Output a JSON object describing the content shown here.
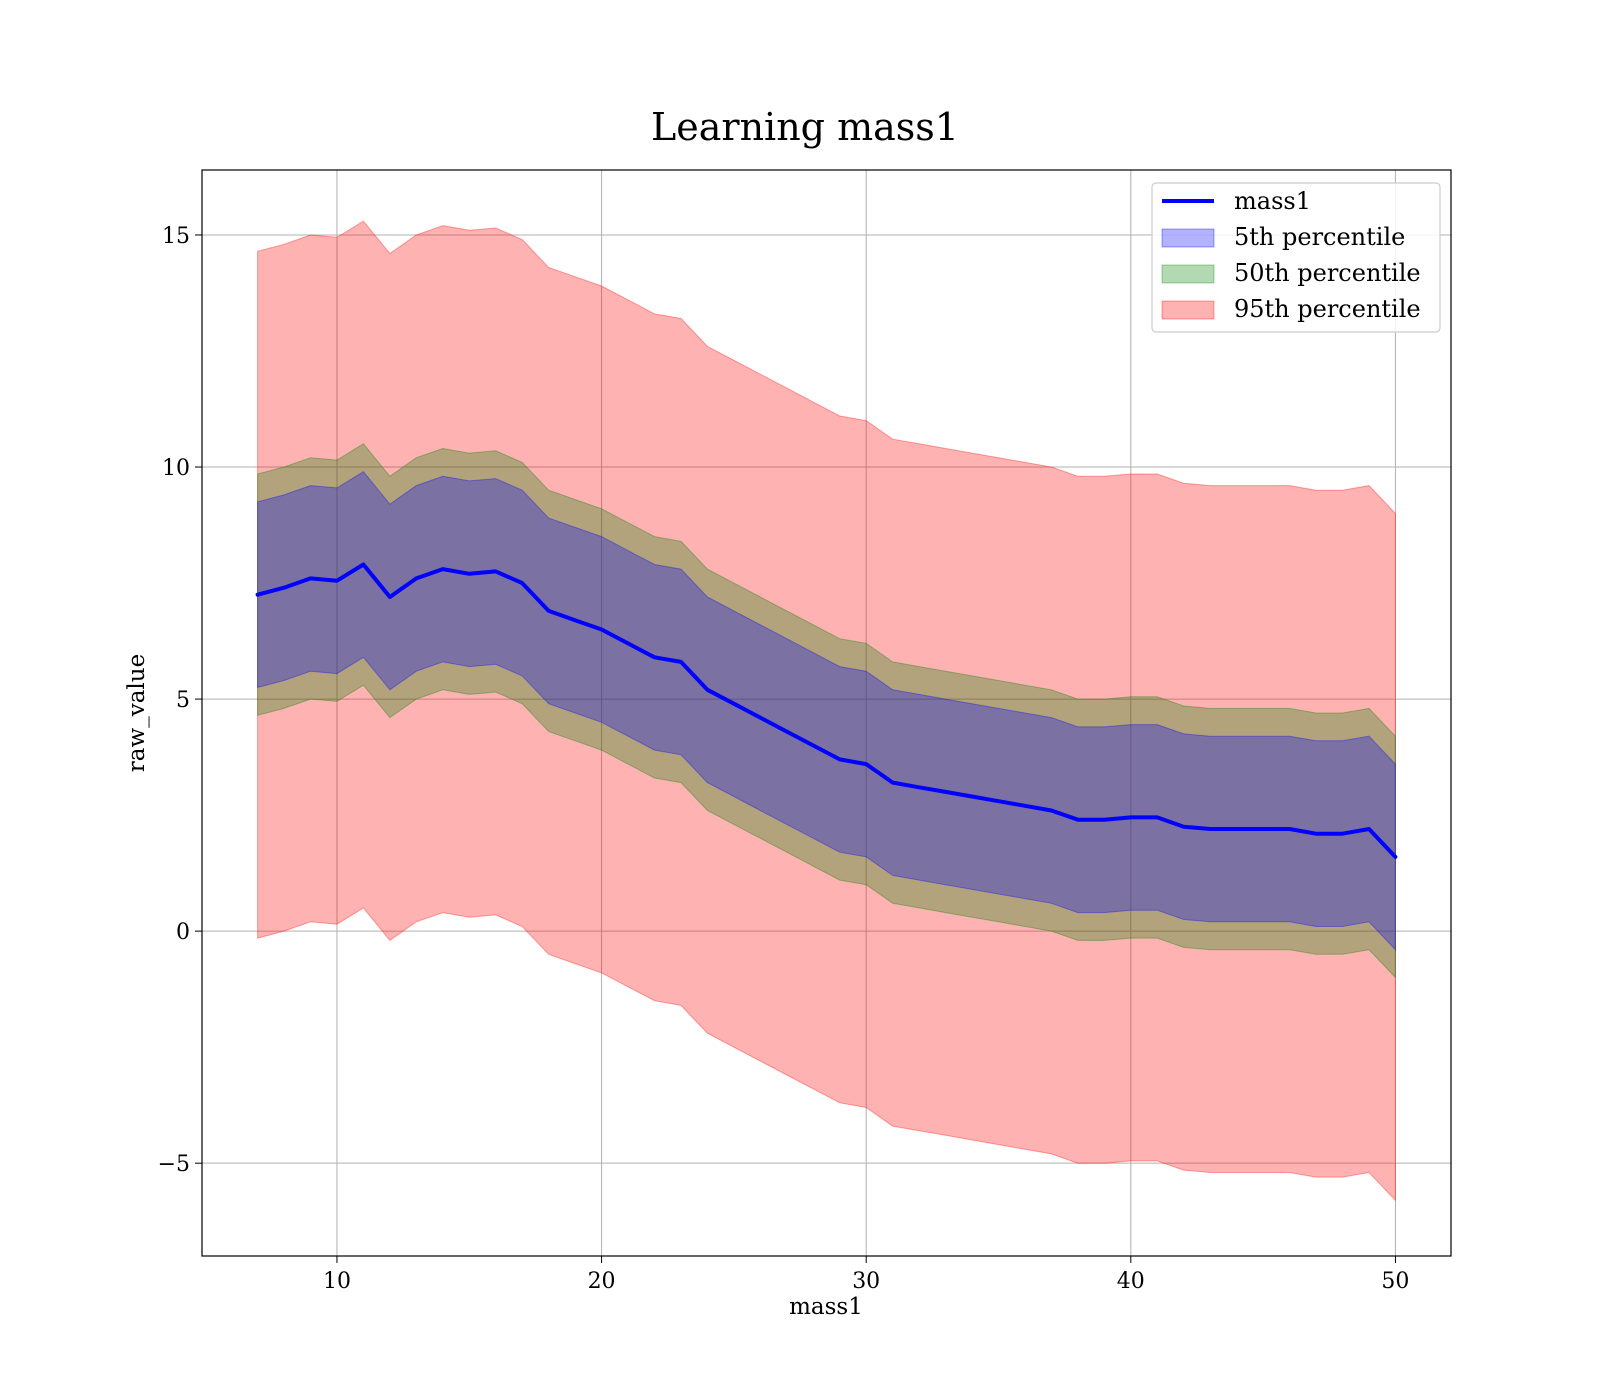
{
  "chart_data": {
    "type": "area",
    "title": "Learning mass1",
    "xlabel": "mass1",
    "ylabel": "raw_value",
    "xlim": [
      4.9,
      52.1
    ],
    "ylim": [
      -7.0,
      16.4
    ],
    "xticks": [
      10,
      20,
      30,
      40,
      50
    ],
    "yticks": [
      -5,
      0,
      5,
      10,
      15
    ],
    "xtick_labels": [
      "10",
      "20",
      "30",
      "40",
      "50"
    ],
    "ytick_labels": [
      "−5",
      "0",
      "5",
      "10",
      "15"
    ],
    "grid": true,
    "legend_position": "top-right",
    "x": [
      7,
      8,
      9,
      10,
      11,
      12,
      13,
      14,
      15,
      16,
      17,
      18,
      19,
      20,
      21,
      22,
      23,
      24,
      25,
      26,
      27,
      28,
      29,
      30,
      31,
      32,
      33,
      34,
      35,
      36,
      37,
      38,
      39,
      40,
      41,
      42,
      43,
      44,
      45,
      46,
      47,
      48,
      49,
      50
    ],
    "series": [
      {
        "name": "mass1",
        "kind": "line",
        "color": "#0000ff",
        "values": [
          7.25,
          7.4,
          7.6,
          7.55,
          7.9,
          7.2,
          7.6,
          7.8,
          7.7,
          7.75,
          7.5,
          6.9,
          6.7,
          6.5,
          6.2,
          5.9,
          5.8,
          5.2,
          4.9,
          4.6,
          4.3,
          4.0,
          3.7,
          3.6,
          3.2,
          3.1,
          3.0,
          2.9,
          2.8,
          2.7,
          2.6,
          2.4,
          2.4,
          2.45,
          2.45,
          2.25,
          2.2,
          2.2,
          2.2,
          2.2,
          2.1,
          2.1,
          2.2,
          1.6
        ]
      },
      {
        "name": "5th percentile",
        "kind": "band",
        "color": "#0000ff",
        "lower": [
          5.25,
          5.4,
          5.6,
          5.55,
          5.9,
          5.2,
          5.6,
          5.8,
          5.7,
          5.75,
          5.5,
          4.9,
          4.7,
          4.5,
          4.2,
          3.9,
          3.8,
          3.2,
          2.9,
          2.6,
          2.3,
          2.0,
          1.7,
          1.6,
          1.2,
          1.1,
          1.0,
          0.9,
          0.8,
          0.7,
          0.6,
          0.4,
          0.4,
          0.45,
          0.45,
          0.25,
          0.2,
          0.2,
          0.2,
          0.2,
          0.1,
          0.1,
          0.2,
          -0.4
        ],
        "upper": [
          9.25,
          9.4,
          9.6,
          9.55,
          9.9,
          9.2,
          9.6,
          9.8,
          9.7,
          9.75,
          9.5,
          8.9,
          8.7,
          8.5,
          8.2,
          7.9,
          7.8,
          7.2,
          6.9,
          6.6,
          6.3,
          6.0,
          5.7,
          5.6,
          5.2,
          5.1,
          5.0,
          4.9,
          4.8,
          4.7,
          4.6,
          4.4,
          4.4,
          4.45,
          4.45,
          4.25,
          4.2,
          4.2,
          4.2,
          4.2,
          4.1,
          4.1,
          4.2,
          3.6
        ]
      },
      {
        "name": "50th percentile",
        "kind": "band",
        "color": "#008000",
        "lower": [
          4.65,
          4.8,
          5.0,
          4.95,
          5.3,
          4.6,
          5.0,
          5.2,
          5.1,
          5.15,
          4.9,
          4.3,
          4.1,
          3.9,
          3.6,
          3.3,
          3.2,
          2.6,
          2.3,
          2.0,
          1.7,
          1.4,
          1.1,
          1.0,
          0.6,
          0.5,
          0.4,
          0.3,
          0.2,
          0.1,
          0.0,
          -0.2,
          -0.2,
          -0.15,
          -0.15,
          -0.35,
          -0.4,
          -0.4,
          -0.4,
          -0.4,
          -0.5,
          -0.5,
          -0.4,
          -1.0
        ],
        "upper": [
          9.85,
          10.0,
          10.2,
          10.15,
          10.5,
          9.8,
          10.2,
          10.4,
          10.3,
          10.35,
          10.1,
          9.5,
          9.3,
          9.1,
          8.8,
          8.5,
          8.4,
          7.8,
          7.5,
          7.2,
          6.9,
          6.6,
          6.3,
          6.2,
          5.8,
          5.7,
          5.6,
          5.5,
          5.4,
          5.3,
          5.2,
          5.0,
          5.0,
          5.05,
          5.05,
          4.85,
          4.8,
          4.8,
          4.8,
          4.8,
          4.7,
          4.7,
          4.8,
          4.2
        ]
      },
      {
        "name": "95th percentile",
        "kind": "band",
        "color": "#ff0000",
        "lower": [
          -0.15,
          0.0,
          0.2,
          0.15,
          0.5,
          -0.2,
          0.2,
          0.4,
          0.3,
          0.35,
          0.1,
          -0.5,
          -0.7,
          -0.9,
          -1.2,
          -1.5,
          -1.6,
          -2.2,
          -2.5,
          -2.8,
          -3.1,
          -3.4,
          -3.7,
          -3.8,
          -4.2,
          -4.3,
          -4.4,
          -4.5,
          -4.6,
          -4.7,
          -4.8,
          -5.0,
          -5.0,
          -4.95,
          -4.95,
          -5.15,
          -5.2,
          -5.2,
          -5.2,
          -5.2,
          -5.3,
          -5.3,
          -5.2,
          -5.8
        ],
        "upper": [
          14.65,
          14.8,
          15.0,
          14.95,
          15.3,
          14.6,
          15.0,
          15.2,
          15.1,
          15.15,
          14.9,
          14.3,
          14.1,
          13.9,
          13.6,
          13.3,
          13.2,
          12.6,
          12.3,
          12.0,
          11.7,
          11.4,
          11.1,
          11.0,
          10.6,
          10.5,
          10.4,
          10.3,
          10.2,
          10.1,
          10.0,
          9.8,
          9.8,
          9.85,
          9.85,
          9.65,
          9.6,
          9.6,
          9.6,
          9.6,
          9.5,
          9.5,
          9.6,
          9.0
        ]
      }
    ]
  }
}
